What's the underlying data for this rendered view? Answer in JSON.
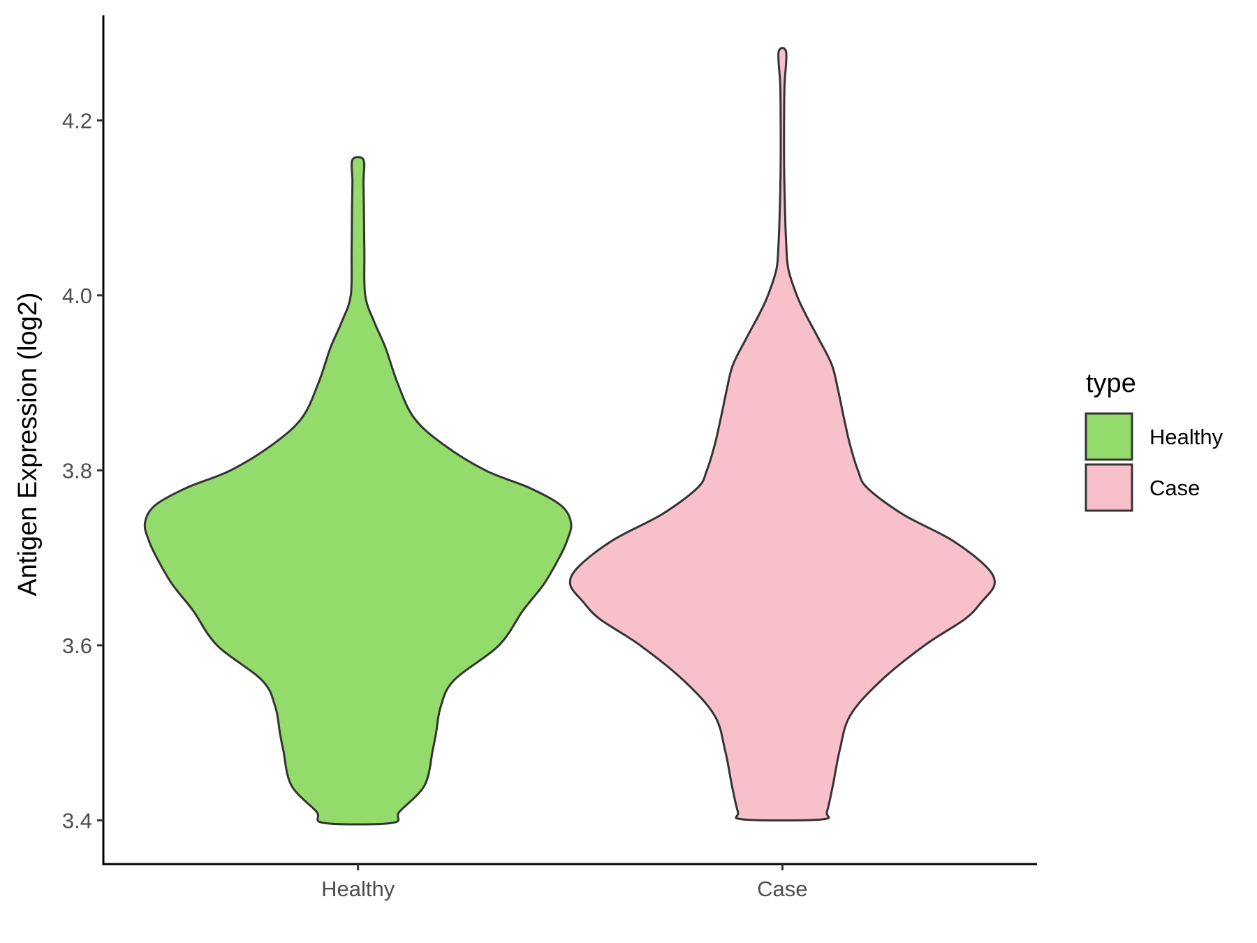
{
  "chart_data": {
    "type": "violin",
    "title": "",
    "xlabel": "",
    "ylabel": "Antigen Expression (log2)",
    "ylim": [
      3.35,
      4.32
    ],
    "yticks": [
      3.4,
      3.6,
      3.8,
      4.0,
      4.2
    ],
    "ytick_labels": [
      "3.4",
      "3.6",
      "3.8",
      "4.0",
      "4.2"
    ],
    "categories": [
      "Healthy",
      "Case"
    ],
    "grid": false,
    "legend": {
      "title": "type",
      "placement": "right",
      "entries": [
        "Healthy",
        "Case"
      ]
    },
    "colors": {
      "Healthy": "#93dc6b",
      "Case": "#f7c0cb",
      "outline": "#333333",
      "axis": "#000000"
    },
    "series": [
      {
        "name": "Healthy",
        "min": 3.397,
        "max": 4.155,
        "profile": [
          [
            3.397,
            0.08
          ],
          [
            3.41,
            0.098
          ],
          [
            3.44,
            0.157
          ],
          [
            3.48,
            0.176
          ],
          [
            3.5,
            0.184
          ],
          [
            3.53,
            0.195
          ],
          [
            3.56,
            0.226
          ],
          [
            3.6,
            0.332
          ],
          [
            3.64,
            0.389
          ],
          [
            3.67,
            0.438
          ],
          [
            3.7,
            0.474
          ],
          [
            3.72,
            0.493
          ],
          [
            3.74,
            0.502
          ],
          [
            3.76,
            0.478
          ],
          [
            3.78,
            0.404
          ],
          [
            3.8,
            0.3
          ],
          [
            3.83,
            0.2
          ],
          [
            3.86,
            0.132
          ],
          [
            3.9,
            0.093
          ],
          [
            3.94,
            0.065
          ],
          [
            3.97,
            0.038
          ],
          [
            4.0,
            0.017
          ],
          [
            4.05,
            0.015
          ],
          [
            4.1,
            0.014
          ],
          [
            4.13,
            0.013
          ],
          [
            4.155,
            0.013
          ]
        ]
      },
      {
        "name": "Case",
        "min": 3.401,
        "max": 4.278,
        "profile": [
          [
            3.401,
            0.092
          ],
          [
            3.41,
            0.105
          ],
          [
            3.44,
            0.119
          ],
          [
            3.48,
            0.135
          ],
          [
            3.52,
            0.16
          ],
          [
            3.56,
            0.233
          ],
          [
            3.6,
            0.335
          ],
          [
            3.63,
            0.43
          ],
          [
            3.65,
            0.47
          ],
          [
            3.67,
            0.5
          ],
          [
            3.69,
            0.48
          ],
          [
            3.72,
            0.4
          ],
          [
            3.75,
            0.283
          ],
          [
            3.78,
            0.2
          ],
          [
            3.8,
            0.178
          ],
          [
            3.83,
            0.159
          ],
          [
            3.86,
            0.145
          ],
          [
            3.89,
            0.132
          ],
          [
            3.92,
            0.117
          ],
          [
            3.95,
            0.086
          ],
          [
            3.98,
            0.053
          ],
          [
            4.0,
            0.034
          ],
          [
            4.03,
            0.014
          ],
          [
            4.06,
            0.009
          ],
          [
            4.1,
            0.006
          ],
          [
            4.15,
            0.004
          ],
          [
            4.2,
            0.004
          ],
          [
            4.24,
            0.005
          ],
          [
            4.278,
            0.009
          ]
        ]
      }
    ]
  }
}
